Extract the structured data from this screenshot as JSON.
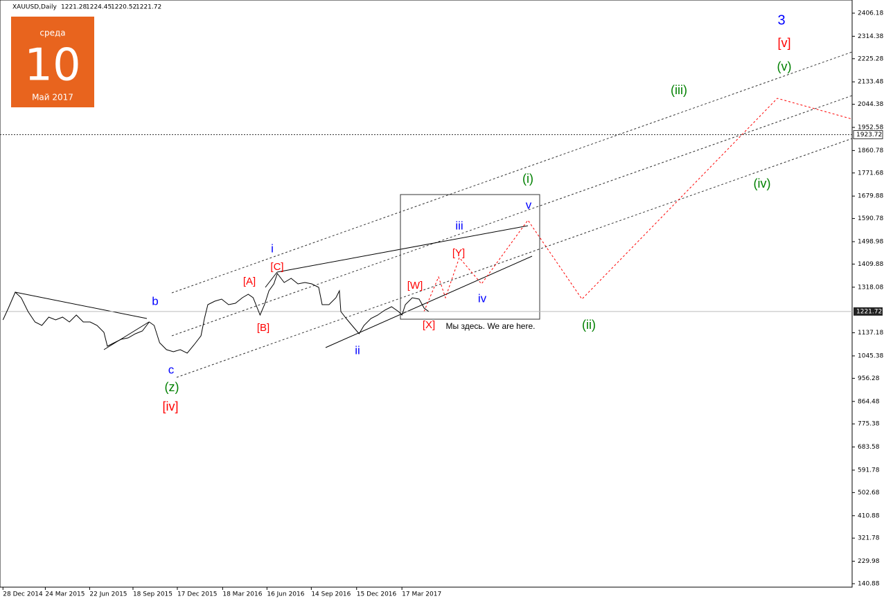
{
  "chart_data": {
    "type": "line",
    "symbol": "XAUUSD,Daily",
    "ohlc": [
      1221.28,
      1224.45,
      1220.52,
      1221.72
    ],
    "calendar": {
      "weekday": "среда",
      "day": "10",
      "month": "Май 2017"
    },
    "x": [
      "2014-12-28",
      "2015-01-08",
      "2015-01-22",
      "2015-02-03",
      "2015-02-17",
      "2015-03-03",
      "2015-03-17",
      "2015-03-31",
      "2015-04-14",
      "2015-04-28",
      "2015-05-12",
      "2015-05-26",
      "2015-06-09",
      "2015-06-23",
      "2015-07-07",
      "2015-07-21",
      "2015-07-28",
      "2015-08-11",
      "2015-08-25",
      "2015-09-08",
      "2015-09-23",
      "2015-10-07",
      "2015-10-21",
      "2015-10-31",
      "2015-11-11",
      "2015-11-25",
      "2015-12-09",
      "2015-12-23",
      "2016-01-06",
      "2016-01-20",
      "2016-02-03",
      "2016-02-10",
      "2016-02-17",
      "2016-03-02",
      "2016-03-16",
      "2016-03-30",
      "2016-04-13",
      "2016-04-27",
      "2016-05-09",
      "2016-05-19",
      "2016-06-02",
      "2016-06-11",
      "2016-06-20",
      "2016-06-30",
      "2016-07-07",
      "2016-07-21",
      "2016-08-04",
      "2016-08-18",
      "2016-09-01",
      "2016-09-15",
      "2016-09-29",
      "2016-10-06",
      "2016-10-20",
      "2016-11-03",
      "2016-11-10",
      "2016-11-13",
      "2016-11-24",
      "2016-12-08",
      "2016-12-20",
      "2016-12-30",
      "2017-01-13",
      "2017-01-27",
      "2017-02-10",
      "2017-02-24",
      "2017-03-10",
      "2017-03-17",
      "2017-03-24",
      "2017-04-07",
      "2017-04-21",
      "2017-05-01",
      "2017-05-10"
    ],
    "series": [
      {
        "name": "XAUUSD",
        "color": "#000000",
        "values": [
          1188.3,
          1235.0,
          1298.3,
          1276.3,
          1221.3,
          1180.0,
          1166.3,
          1199.3,
          1188.3,
          1199.3,
          1180.0,
          1207.6,
          1180.0,
          1180.0,
          1166.3,
          1138.8,
          1083.9,
          1097.6,
          1111.3,
          1116.8,
          1133.3,
          1144.3,
          1180.0,
          1166.3,
          1097.6,
          1070.1,
          1061.8,
          1070.1,
          1056.4,
          1089.3,
          1125.1,
          1193.8,
          1248.8,
          1262.6,
          1270.8,
          1248.8,
          1254.3,
          1276.3,
          1290.1,
          1276.3,
          1207.6,
          1248.8,
          1303.8,
          1331.3,
          1372.5,
          1336.8,
          1353.3,
          1331.3,
          1336.8,
          1331.3,
          1317.6,
          1248.8,
          1248.8,
          1276.3,
          1303.8,
          1221.3,
          1193.8,
          1160.8,
          1133.3,
          1166.3,
          1193.8,
          1207.6,
          1226.8,
          1240.5,
          1221.3,
          1207.6,
          1248.8,
          1276.3,
          1270.8,
          1235.0,
          1221.7
        ]
      }
    ],
    "xlim": [
      "2014-12-22",
      "2019-09-17"
    ],
    "xticks": [
      {
        "value": "2014-12-28",
        "label": "28 Dec 2014"
      },
      {
        "value": "2015-03-24",
        "label": "24 Mar 2015"
      },
      {
        "value": "2015-06-22",
        "label": "22 Jun 2015"
      },
      {
        "value": "2015-09-18",
        "label": "18 Sep 2015"
      },
      {
        "value": "2015-12-17",
        "label": "17 Dec 2015"
      },
      {
        "value": "2016-03-18",
        "label": "18 Mar 2016"
      },
      {
        "value": "2016-06-16",
        "label": "16 Jun 2016"
      },
      {
        "value": "2016-09-14",
        "label": "14 Sep 2016"
      },
      {
        "value": "2016-12-15",
        "label": "15 Dec 2016"
      },
      {
        "value": "2017-03-17",
        "label": "17 Mar 2017"
      }
    ],
    "ylim": [
      127.1,
      2458.4
    ],
    "yticks": [
      2406.18,
      2314.38,
      2225.28,
      2133.48,
      2044.38,
      1952.58,
      1860.78,
      1771.68,
      1679.88,
      1590.78,
      1498.98,
      1409.88,
      1318.08,
      1137.18,
      1045.38,
      956.28,
      864.48,
      775.38,
      683.58,
      591.78,
      502.68,
      410.88,
      321.78,
      229.98,
      140.88
    ],
    "level": 1923.72,
    "annotations": [
      {
        "text": "3",
        "color": "#0000ff"
      },
      {
        "text": "[v]",
        "color": "#ff0000"
      },
      {
        "text": "(v)",
        "color": "#008000"
      },
      {
        "text": "(iii)",
        "color": "#008000"
      },
      {
        "text": "(i)",
        "color": "#008000"
      },
      {
        "text": "(iv)",
        "color": "#008000"
      },
      {
        "text": "(ii)",
        "color": "#008000"
      },
      {
        "text": "v",
        "color": "#0000ff"
      },
      {
        "text": "iii",
        "color": "#0000ff"
      },
      {
        "text": "iv",
        "color": "#0000ff"
      },
      {
        "text": "ii",
        "color": "#0000ff"
      },
      {
        "text": "i",
        "color": "#0000ff"
      },
      {
        "text": "b",
        "color": "#0000ff"
      },
      {
        "text": "c",
        "color": "#0000ff"
      },
      {
        "text": "(z)",
        "color": "#008000"
      },
      {
        "text": "[iv]",
        "color": "#ff0000"
      },
      {
        "text": "[A]",
        "color": "#ff0000"
      },
      {
        "text": "[B]",
        "color": "#ff0000"
      },
      {
        "text": "[C]",
        "color": "#ff0000"
      },
      {
        "text": "[W]",
        "color": "#ff0000"
      },
      {
        "text": "[Y]",
        "color": "#ff0000"
      },
      {
        "text": "[X]",
        "color": "#ff0000"
      },
      {
        "text": "Мы здесь. We are here.",
        "color": "#000000"
      }
    ]
  }
}
